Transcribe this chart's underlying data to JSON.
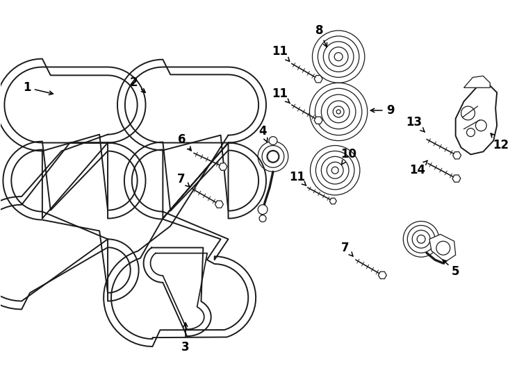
{
  "bg_color": "#ffffff",
  "line_color": "#1a1a1a",
  "lw": 1.4,
  "lw_thin": 0.9,
  "label_fontsize": 12,
  "figsize": [
    7.34,
    5.4
  ],
  "dpi": 100
}
